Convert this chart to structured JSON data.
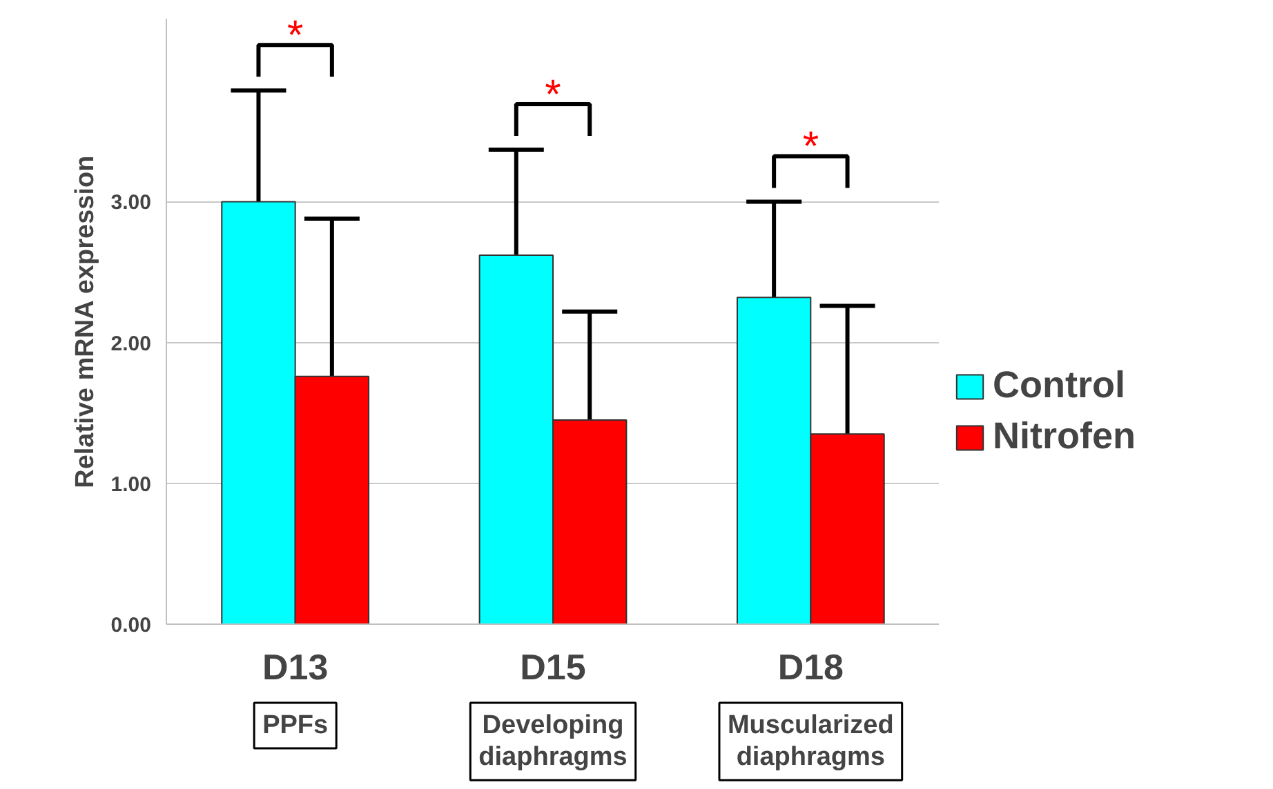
{
  "chart_data": {
    "type": "bar",
    "ylabel": "Relative mRNA expression",
    "categories": [
      "D13",
      "D15",
      "D18"
    ],
    "series": [
      {
        "name": "Control",
        "color": "#00ffff",
        "values": [
          3.0,
          2.62,
          2.32
        ],
        "errors": [
          [
            3.0,
            3.79
          ],
          [
            2.62,
            3.37
          ],
          [
            2.32,
            3.0
          ]
        ]
      },
      {
        "name": "Nitrofen",
        "color": "#ff0000",
        "values": [
          1.76,
          1.45,
          1.35
        ],
        "errors": [
          [
            1.76,
            2.88
          ],
          [
            1.45,
            2.22
          ],
          [
            1.35,
            2.26
          ]
        ]
      }
    ],
    "ylim": [
      0,
      4.3
    ],
    "yticks": [
      {
        "value": 0,
        "label": "0.00"
      },
      {
        "value": 1,
        "label": "1.00"
      },
      {
        "value": 2,
        "label": "2.00"
      },
      {
        "value": 3,
        "label": "3.00"
      }
    ],
    "grid": "y",
    "legend": "right",
    "annotations": [
      "*",
      "*",
      "*",
      "PPFs",
      "Developing\ndiaphragms",
      "Muscularized\ndiaphragms"
    ]
  }
}
